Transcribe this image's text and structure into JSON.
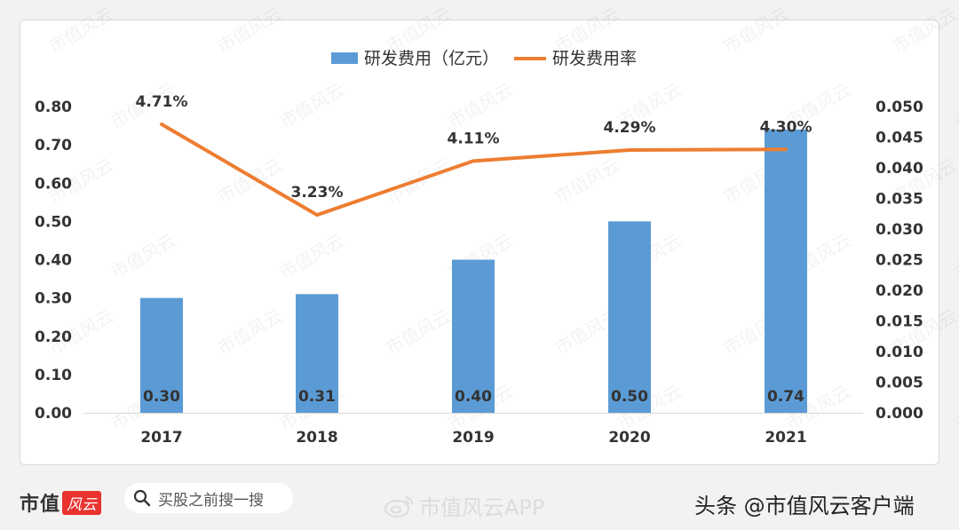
{
  "chart_data": {
    "type": "bar+line",
    "categories": [
      "2017",
      "2018",
      "2019",
      "2020",
      "2021"
    ],
    "series": [
      {
        "name": "研发费用（亿元）",
        "type": "bar",
        "axis": "left",
        "color": "#5b9bd5",
        "values": [
          0.3,
          0.31,
          0.4,
          0.5,
          0.74
        ],
        "labels": [
          "0.30",
          "0.31",
          "0.40",
          "0.50",
          "0.74"
        ]
      },
      {
        "name": "研发费用率",
        "type": "line",
        "axis": "right",
        "color": "#ed7d31",
        "values": [
          0.0471,
          0.0323,
          0.0411,
          0.0429,
          0.043
        ],
        "labels": [
          "4.71%",
          "3.23%",
          "4.11%",
          "4.29%",
          "4.30%"
        ]
      }
    ],
    "y_left": {
      "min": 0,
      "max": 0.8,
      "ticks": [
        "0.00",
        "0.10",
        "0.20",
        "0.30",
        "0.40",
        "0.50",
        "0.60",
        "0.70",
        "0.80"
      ]
    },
    "y_right": {
      "min": 0,
      "max": 0.05,
      "ticks": [
        "0.000",
        "0.005",
        "0.010",
        "0.015",
        "0.020",
        "0.025",
        "0.030",
        "0.035",
        "0.040",
        "0.045",
        "0.050"
      ]
    },
    "legend_position": "top",
    "grid": false,
    "watermark": "市值风云"
  },
  "footer": {
    "brand_name": "市值",
    "brand_logo_text": "风云",
    "search_text": "买股之前搜一搜",
    "weibo_mark": "市值风云APP",
    "source_credit": "头条 @市值风云客户端"
  },
  "colors": {
    "bar": "#5b9bd5",
    "line": "#ed7d31",
    "axis_text": "#333333",
    "brand_red": "#e8332f"
  }
}
